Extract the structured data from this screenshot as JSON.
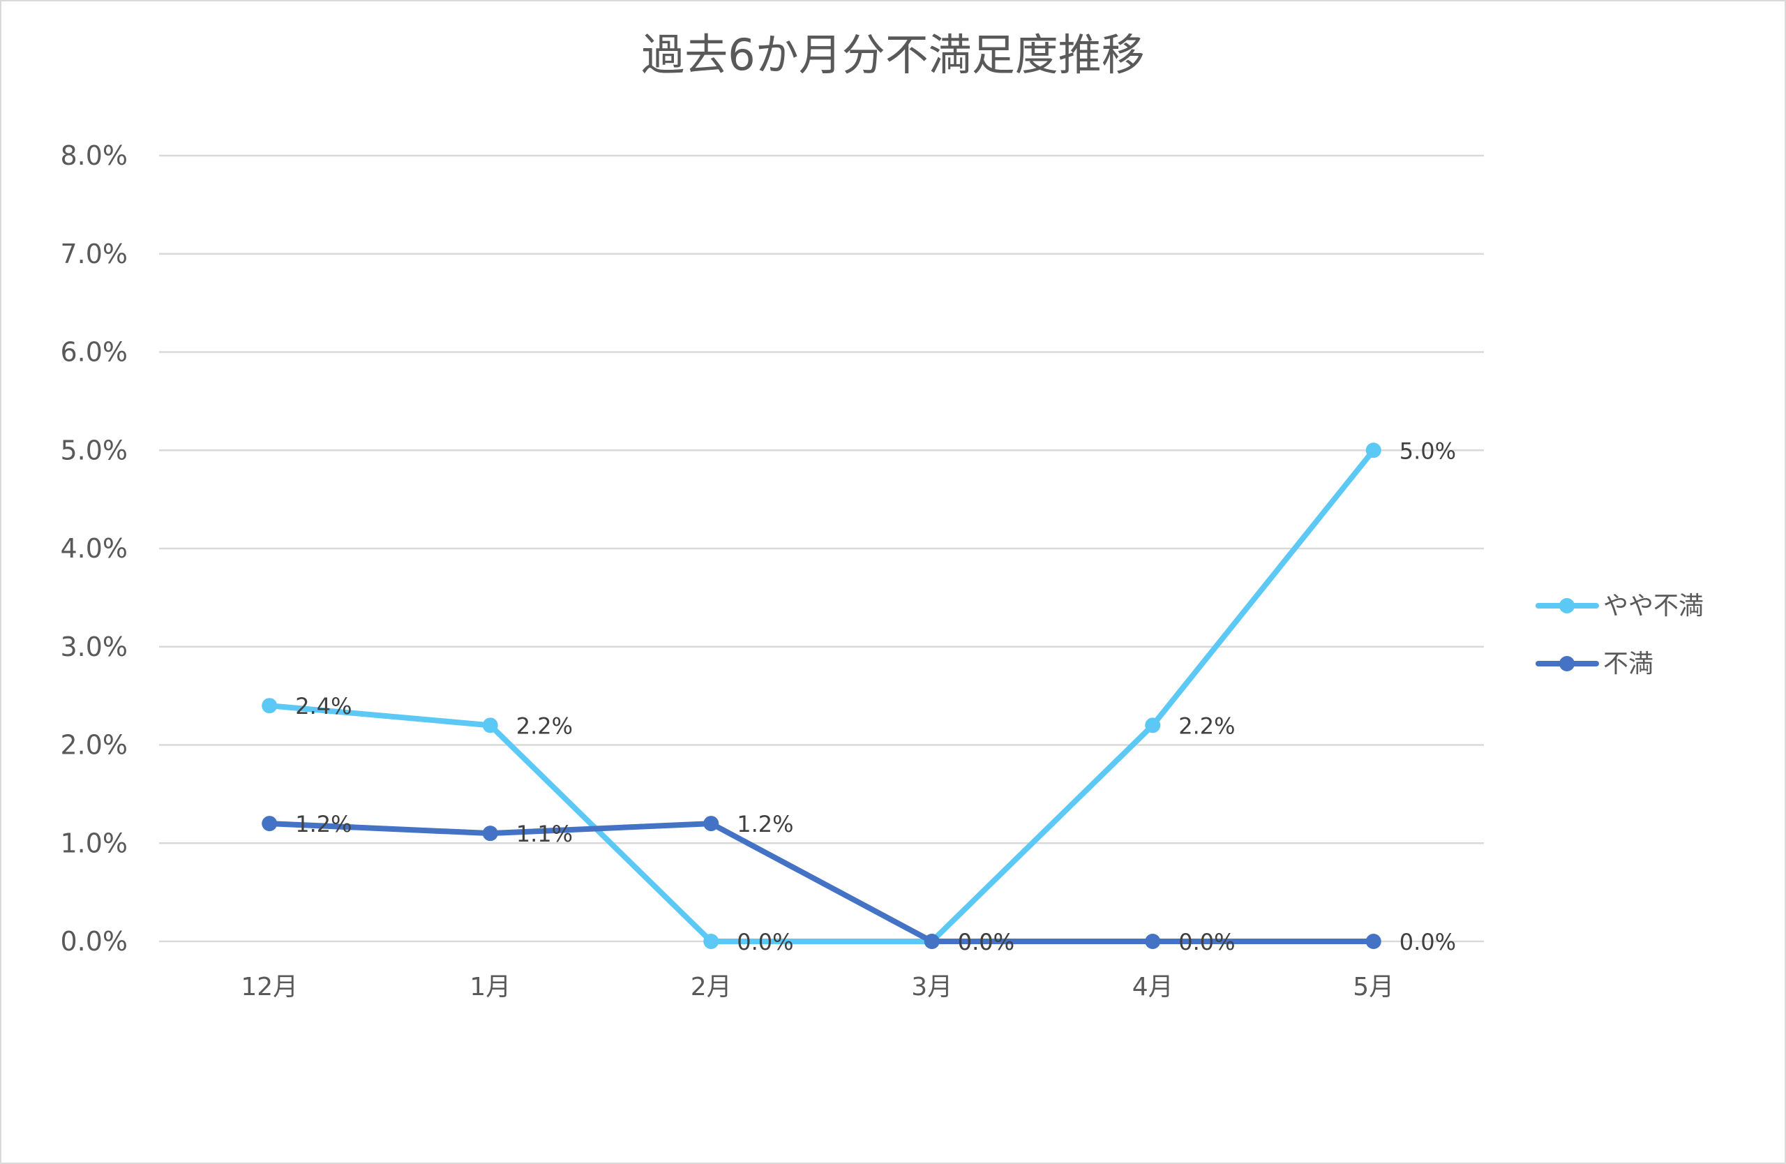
{
  "chart_data": {
    "type": "line",
    "title": "過去6か月分不満足度推移",
    "categories": [
      "12月",
      "1月",
      "2月",
      "3月",
      "4月",
      "5月"
    ],
    "ylim": [
      0,
      8
    ],
    "ytick_values": [
      0,
      1,
      2,
      3,
      4,
      5,
      6,
      7,
      8
    ],
    "ytick_labels": [
      "0.0%",
      "1.0%",
      "2.0%",
      "3.0%",
      "4.0%",
      "5.0%",
      "6.0%",
      "7.0%",
      "8.0%"
    ],
    "grid": true,
    "legend_position": "right",
    "series": [
      {
        "name": "やや不満",
        "color": "#5BC8F5",
        "values": [
          2.4,
          2.2,
          0.0,
          0.0,
          2.2,
          5.0
        ],
        "labels": [
          "2.4%",
          "2.2%",
          "0.0%",
          "0.0%",
          "2.2%",
          "5.0%"
        ]
      },
      {
        "name": "不満",
        "color": "#4472C4",
        "values": [
          1.2,
          1.1,
          1.2,
          0.0,
          0.0,
          0.0
        ],
        "labels": [
          "1.2%",
          "1.1%",
          "1.2%",
          "0.0%",
          "0.0%",
          "0.0%"
        ]
      }
    ]
  }
}
